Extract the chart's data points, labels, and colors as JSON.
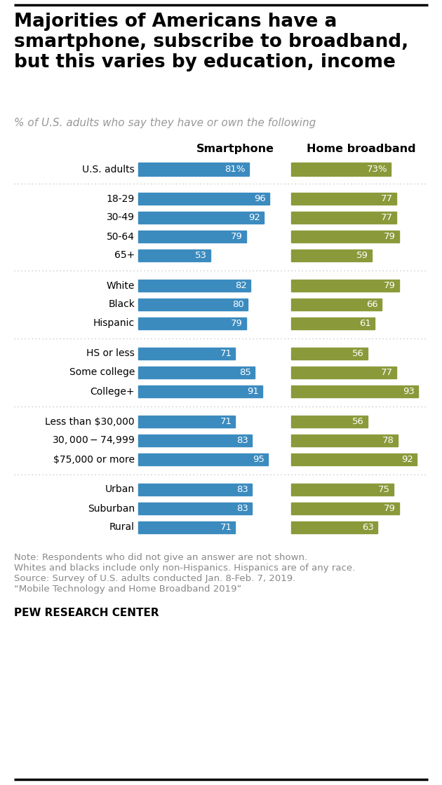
{
  "title": "Majorities of Americans have a\nsmartphone, subscribe to broadband,\nbut this varies by education, income",
  "subtitle": "% of U.S. adults who say they have or own the following",
  "col1_header": "Smartphone",
  "col2_header": "Home broadband",
  "note_line1": "Note: Respondents who did not give an answer are not shown.",
  "note_line2": "Whites and blacks include only non-Hispanics. Hispanics are of any race.",
  "note_line3": "Source: Survey of U.S. adults conducted Jan. 8-Feb. 7, 2019.",
  "note_line4": "“Mobile Technology and Home Broadband 2019”",
  "footer": "PEW RESEARCH CENTER",
  "smartphone_color": "#3b8bbf",
  "broadband_color": "#8a9a3a",
  "categories": [
    "U.S. adults",
    "18-29",
    "30-49",
    "50-64",
    "65+",
    "White",
    "Black",
    "Hispanic",
    "HS or less",
    "Some college",
    "College+",
    "Less than $30,000",
    "$30,000-$74,999",
    "$75,000 or more",
    "Urban",
    "Suburban",
    "Rural"
  ],
  "smartphone": [
    81,
    96,
    92,
    79,
    53,
    82,
    80,
    79,
    71,
    85,
    91,
    71,
    83,
    95,
    83,
    83,
    71
  ],
  "broadband": [
    73,
    77,
    77,
    79,
    59,
    79,
    66,
    61,
    56,
    77,
    93,
    56,
    78,
    92,
    75,
    79,
    63
  ],
  "group_after_indices": [
    0,
    4,
    7,
    10,
    13
  ],
  "us_adults_idx": 0,
  "background_color": "#ffffff",
  "note_color": "#888888",
  "dotted_line_color": "#bbbbbb"
}
